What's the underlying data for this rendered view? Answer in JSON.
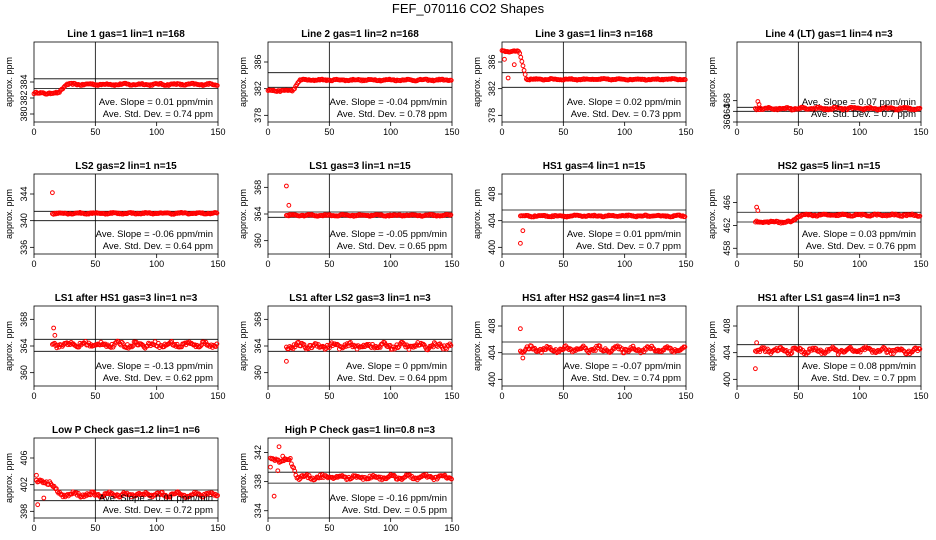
{
  "title": "FEF_070116  CO2 Shapes",
  "chart_data": [
    {
      "type": "scatter",
      "title": "Line 1 gas=1 lin=1 n=168",
      "ylabel": "approx. ppm",
      "xlim": [
        0,
        150
      ],
      "ylim": [
        379,
        389
      ],
      "xticks": [
        0,
        50,
        100,
        150
      ],
      "yticks": [
        380,
        382,
        384
      ],
      "hlines": [
        384.4,
        383.2
      ],
      "vline": 50,
      "ave_slope": "Ave. Slope =  0.01  ppm/min",
      "ave_std": "Ave. Std. Dev. =  0.74  ppm",
      "shape": {
        "start": 0,
        "base": 382.6,
        "level": 383.7,
        "step_at": 20,
        "noise": 0.12,
        "spikes": []
      }
    },
    {
      "type": "scatter",
      "title": "Line 2 gas=1 lin=2 n=168",
      "ylabel": "approx. ppm",
      "xlim": [
        0,
        150
      ],
      "ylim": [
        377,
        389
      ],
      "xticks": [
        0,
        50,
        100,
        150
      ],
      "yticks": [
        378,
        382,
        386
      ],
      "hlines": [
        384.4,
        382.2
      ],
      "vline": 50,
      "ave_slope": "Ave. Slope =  -0.04  ppm/min",
      "ave_std": "Ave. Std. Dev. =  0.78  ppm",
      "shape": {
        "start": 0,
        "base": 381.7,
        "level": 383.3,
        "step_at": 20,
        "noise": 0.12,
        "spikes": []
      }
    },
    {
      "type": "scatter",
      "title": "Line 3 gas=1 lin=3 n=168",
      "ylabel": "approx. ppm",
      "xlim": [
        0,
        150
      ],
      "ylim": [
        377,
        389
      ],
      "xticks": [
        0,
        50,
        100,
        150
      ],
      "yticks": [
        378,
        382,
        386
      ],
      "hlines": [
        384.4,
        382.2
      ],
      "vline": 50,
      "ave_slope": "Ave. Slope =  0.02  ppm/min",
      "ave_std": "Ave. Std. Dev. =  0.73  ppm",
      "shape": {
        "start": 0,
        "base": 387.6,
        "level": 383.4,
        "step_at": 14,
        "noise": 0.1,
        "spikes": [
          [
            5,
            383.6
          ],
          [
            10,
            385.6
          ],
          [
            2,
            386.4
          ]
        ]
      }
    },
    {
      "type": "scatter",
      "title": "Line 4 (LT) gas=1 lin=4 n=3",
      "ylabel": "approx. ppm",
      "xlim": [
        0,
        150
      ],
      "ylim": [
        360,
        390
      ],
      "xticks": [
        0,
        50,
        100,
        150
      ],
      "yticks": [
        360,
        364,
        368
      ],
      "hlines": [
        365.5,
        364.0
      ],
      "vline": 50,
      "ave_slope": "Ave. Slope =  0.07  ppm/min",
      "ave_std": "Ave. Std. Dev. =  0.7  ppm",
      "shape": {
        "start": 15,
        "base": 365.0,
        "level": 365.0,
        "step_at": 15,
        "noise": 0.5,
        "spikes": [
          [
            17,
            367.7
          ],
          [
            18,
            366.6
          ]
        ]
      }
    },
    {
      "type": "scatter",
      "title": "LS2 gas=2 lin=1 n=15",
      "ylabel": "approx. ppm",
      "xlim": [
        0,
        150
      ],
      "ylim": [
        335,
        347
      ],
      "xticks": [
        0,
        50,
        100,
        150
      ],
      "yticks": [
        336,
        340,
        344
      ],
      "hlines": [
        341.4,
        340.0
      ],
      "vline": 50,
      "ave_slope": "Ave. Slope =  -0.06  ppm/min",
      "ave_std": "Ave. Std. Dev. =  0.64  ppm",
      "shape": {
        "start": 15,
        "base": 341.1,
        "level": 341.1,
        "step_at": 15,
        "noise": 0.12,
        "spikes": [
          [
            15,
            344.2
          ]
        ]
      }
    },
    {
      "type": "scatter",
      "title": "LS1 gas=3 lin=1 n=15",
      "ylabel": "approx. ppm",
      "xlim": [
        0,
        150
      ],
      "ylim": [
        358,
        370
      ],
      "xticks": [
        0,
        50,
        100,
        150
      ],
      "yticks": [
        360,
        364,
        368
      ],
      "hlines": [
        364.3,
        363.5
      ],
      "vline": 50,
      "ave_slope": "Ave. Slope =  -0.05  ppm/min",
      "ave_std": "Ave. Std. Dev. =  0.65  ppm",
      "shape": {
        "start": 15,
        "base": 363.8,
        "level": 363.8,
        "step_at": 15,
        "noise": 0.12,
        "spikes": [
          [
            15,
            368.2
          ],
          [
            17,
            365.3
          ]
        ]
      }
    },
    {
      "type": "scatter",
      "title": "HS1 gas=4 lin=1 n=15",
      "ylabel": "approx. ppm",
      "xlim": [
        0,
        150
      ],
      "ylim": [
        399,
        411
      ],
      "xticks": [
        0,
        50,
        100,
        150
      ],
      "yticks": [
        400,
        404,
        408
      ],
      "hlines": [
        405.6,
        403.8
      ],
      "vline": 50,
      "ave_slope": "Ave. Slope =  0.01  ppm/min",
      "ave_std": "Ave. Std. Dev. =  0.7  ppm",
      "shape": {
        "start": 15,
        "base": 404.7,
        "level": 404.7,
        "step_at": 15,
        "noise": 0.12,
        "spikes": [
          [
            15,
            400.6
          ],
          [
            17,
            402.5
          ]
        ]
      }
    },
    {
      "type": "scatter",
      "title": "HS2 gas=5 lin=1 n=15",
      "ylabel": "approx. ppm",
      "xlim": [
        0,
        150
      ],
      "ylim": [
        457,
        471
      ],
      "xticks": [
        0,
        50,
        100,
        150
      ],
      "yticks": [
        458,
        462,
        466
      ],
      "hlines": [
        464.3,
        462.6
      ],
      "vline": 50,
      "ave_slope": "Ave. Slope =  0.03  ppm/min",
      "ave_std": "Ave. Std. Dev. =  0.76  ppm",
      "shape": {
        "start": 15,
        "base": 462.6,
        "level": 463.8,
        "step_at": 45,
        "noise": 0.18,
        "spikes": [
          [
            16,
            465.2
          ],
          [
            17,
            464.6
          ]
        ]
      }
    },
    {
      "type": "scatter",
      "title": "LS1 after HS1 gas=3 lin=1 n=3",
      "ylabel": "approx. ppm",
      "xlim": [
        0,
        150
      ],
      "ylim": [
        358,
        370
      ],
      "xticks": [
        0,
        50,
        100,
        150
      ],
      "yticks": [
        360,
        364,
        368
      ],
      "hlines": [
        365.0,
        363.2
      ],
      "vline": 50,
      "ave_slope": "Ave. Slope =  -0.13  ppm/min",
      "ave_std": "Ave. Std. Dev. =  0.62  ppm",
      "shape": {
        "start": 15,
        "base": 364.2,
        "level": 364.2,
        "step_at": 15,
        "noise": 0.45,
        "spikes": [
          [
            16,
            366.7
          ],
          [
            17,
            365.6
          ]
        ]
      }
    },
    {
      "type": "scatter",
      "title": "LS1 after LS2 gas=3 lin=1 n=3",
      "ylabel": "approx. ppm",
      "xlim": [
        0,
        150
      ],
      "ylim": [
        358,
        370
      ],
      "xticks": [
        0,
        50,
        100,
        150
      ],
      "yticks": [
        360,
        364,
        368
      ],
      "hlines": [
        365.0,
        363.2
      ],
      "vline": 50,
      "ave_slope": "Ave. Slope =  0  ppm/min",
      "ave_std": "Ave. Std. Dev. =  0.64  ppm",
      "shape": {
        "start": 15,
        "base": 364.0,
        "level": 364.0,
        "step_at": 15,
        "noise": 0.45,
        "spikes": [
          [
            15,
            361.7
          ]
        ]
      }
    },
    {
      "type": "scatter",
      "title": "HS1 after HS2 gas=4 lin=1 n=3",
      "ylabel": "approx. ppm",
      "xlim": [
        0,
        150
      ],
      "ylim": [
        399,
        411
      ],
      "xticks": [
        0,
        50,
        100,
        150
      ],
      "yticks": [
        400,
        404,
        408
      ],
      "hlines": [
        405.6,
        403.8
      ],
      "vline": 50,
      "ave_slope": "Ave. Slope =  -0.07  ppm/min",
      "ave_std": "Ave. Std. Dev. =  0.74  ppm",
      "shape": {
        "start": 15,
        "base": 404.5,
        "level": 404.5,
        "step_at": 15,
        "noise": 0.45,
        "spikes": [
          [
            15,
            407.6
          ],
          [
            17,
            403.2
          ]
        ]
      }
    },
    {
      "type": "scatter",
      "title": "HS1 after LS1 gas=4 lin=1 n=3",
      "ylabel": "approx. ppm",
      "xlim": [
        0,
        150
      ],
      "ylim": [
        399,
        411
      ],
      "xticks": [
        0,
        50,
        100,
        150
      ],
      "yticks": [
        400,
        404,
        408
      ],
      "hlines": [
        405.2,
        403.4
      ],
      "vline": 50,
      "ave_slope": "Ave. Slope =  0.08  ppm/min",
      "ave_std": "Ave. Std. Dev. =  0.7  ppm",
      "shape": {
        "start": 15,
        "base": 404.3,
        "level": 404.3,
        "step_at": 15,
        "noise": 0.45,
        "spikes": [
          [
            15,
            401.6
          ],
          [
            16,
            405.5
          ]
        ]
      }
    },
    {
      "type": "scatter",
      "title": "Low P Check gas=1.2 lin=1 n=6",
      "ylabel": "approx. ppm",
      "xlim": [
        0,
        150
      ],
      "ylim": [
        397,
        409
      ],
      "xticks": [
        0,
        50,
        100,
        150
      ],
      "yticks": [
        398,
        402,
        406
      ],
      "hlines": [
        401.2,
        399.6
      ],
      "vline": 50,
      "ave_slope": "Ave. Slope =  0.01  ppm/min",
      "ave_std": "Ave. Std. Dev. =  0.72  ppm",
      "shape": {
        "start": 2,
        "base": 402.4,
        "level": 400.5,
        "step_at": 14,
        "noise": 0.35,
        "spikes": [
          [
            2,
            403.4
          ],
          [
            3,
            399.0
          ],
          [
            5,
            402.7
          ],
          [
            8,
            400.0
          ]
        ]
      }
    },
    {
      "type": "scatter",
      "title": "High P Check gas=1 lin=0.8 n=3",
      "ylabel": "approx. ppm",
      "xlim": [
        0,
        150
      ],
      "ylim": [
        333,
        344
      ],
      "xticks": [
        0,
        50,
        100,
        150
      ],
      "yticks": [
        334,
        338,
        342
      ],
      "hlines": [
        339.3,
        337.8
      ],
      "vline": 50,
      "ave_slope": "Ave. Slope =  -0.16  ppm/min",
      "ave_std": "Ave. Std. Dev. =  0.5  ppm",
      "shape": {
        "start": 2,
        "base": 341.0,
        "level": 338.6,
        "step_at": 18,
        "noise": 0.3,
        "spikes": [
          [
            2,
            340.0
          ],
          [
            5,
            336.0
          ],
          [
            9,
            342.8
          ],
          [
            12,
            341.5
          ],
          [
            8,
            339.5
          ]
        ]
      }
    }
  ]
}
